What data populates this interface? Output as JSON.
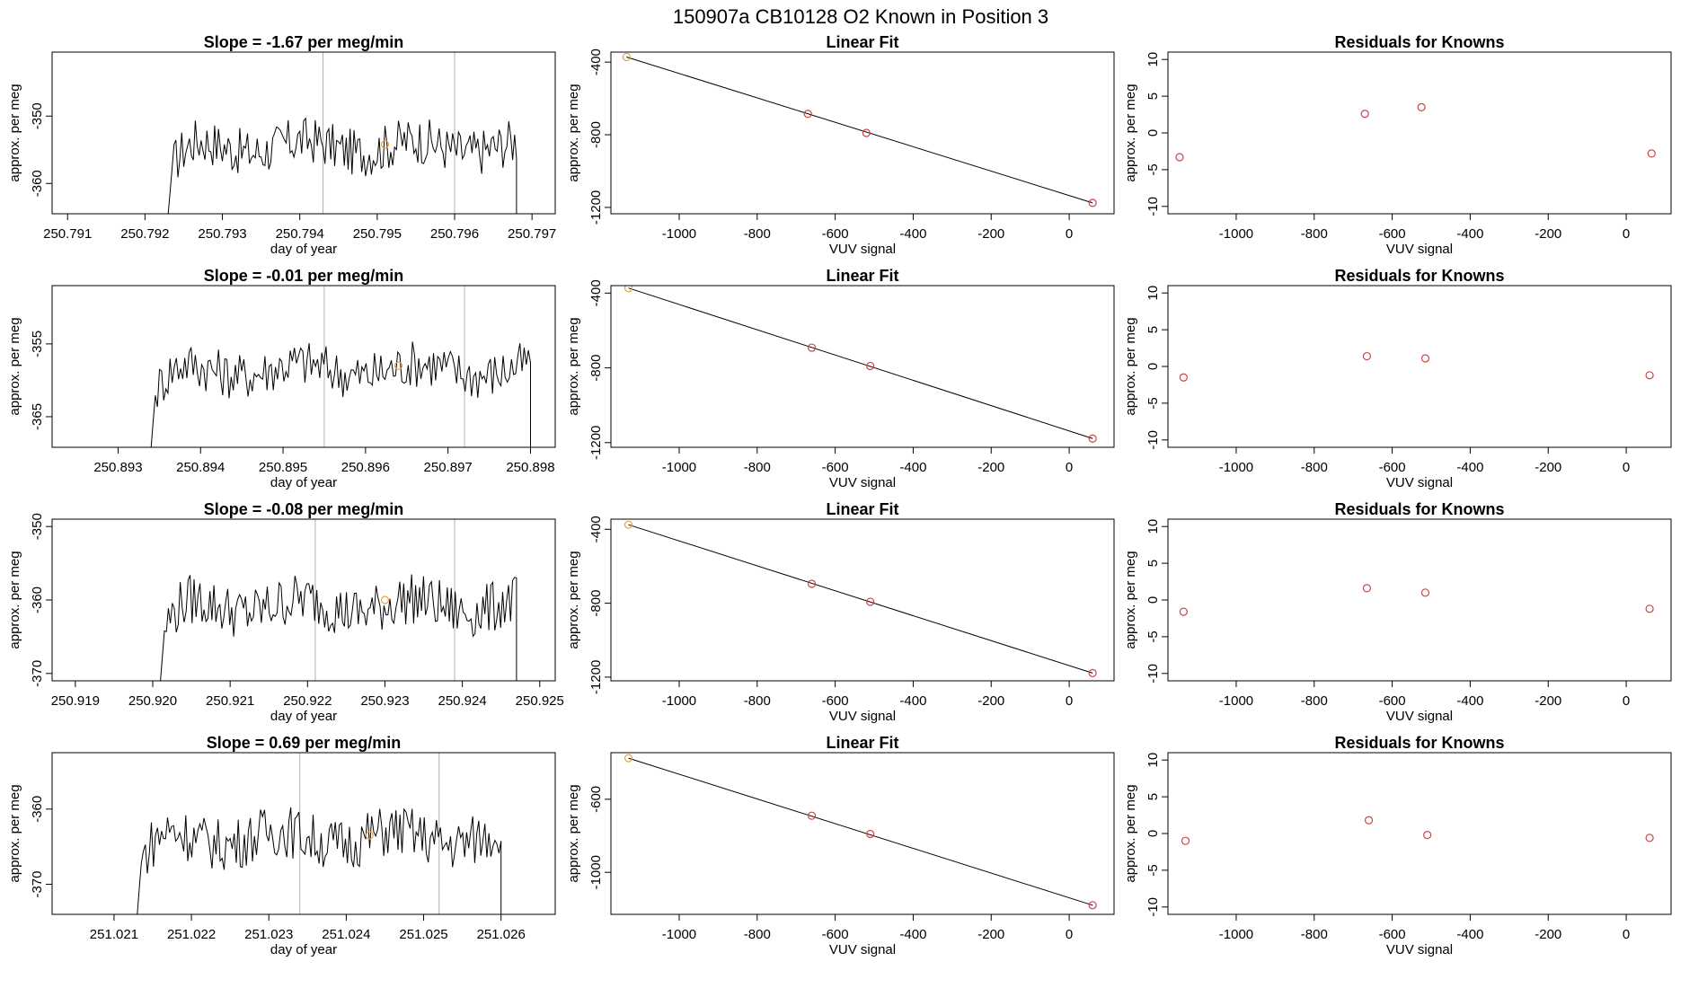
{
  "figure": {
    "title": "150907a      CB10128    O2 Known in Position  3"
  },
  "colors": {
    "line": "#000000",
    "known": "#e8a33d",
    "residual": "#cc4444",
    "axis": "#000000",
    "guide": "#b0b0b0"
  },
  "chart_data": [
    {
      "type": "line",
      "panel": "time-series",
      "row": 1,
      "title": "Slope =  -1.67  per meg/min",
      "xlabel": "day of year",
      "ylabel": "approx. per meg",
      "xlim": [
        250.7908,
        250.7973
      ],
      "ylim": [
        -364.5,
        -340.5
      ],
      "xticks": [
        250.791,
        250.792,
        250.793,
        250.794,
        250.795,
        250.796,
        250.797
      ],
      "xtick_labels": [
        "250.791",
        "250.792",
        "250.793",
        "250.794",
        "250.795",
        "250.796",
        "250.797"
      ],
      "yticks": [
        -350,
        -360
      ],
      "ytick_labels": [
        "-350",
        "-360"
      ],
      "vlines": [
        250.7943,
        250.796
      ],
      "series_start": 250.7923,
      "series_end": 250.7968,
      "series_mean": -354.5,
      "series_amp": 1.6,
      "start_value": -364.5,
      "end_value": -364.5,
      "known_point": {
        "x": 250.7951,
        "y": -354.2
      }
    },
    {
      "type": "line",
      "panel": "time-series",
      "row": 2,
      "title": "Slope =  -0.01  per meg/min",
      "xlabel": "day of year",
      "ylabel": "approx. per meg",
      "xlim": [
        250.8922,
        250.8983
      ],
      "ylim": [
        -369.2,
        -347.0
      ],
      "xticks": [
        250.893,
        250.894,
        250.895,
        250.896,
        250.897,
        250.898
      ],
      "xtick_labels": [
        "250.893",
        "250.894",
        "250.895",
        "250.896",
        "250.897",
        "250.898"
      ],
      "yticks": [
        -355,
        -365
      ],
      "ytick_labels": [
        "-355",
        "-365"
      ],
      "vlines": [
        250.8955,
        250.8972
      ],
      "series_start": 250.8934,
      "series_end": 250.898,
      "series_mean": -358.5,
      "series_amp": 1.5,
      "start_value": -369.2,
      "end_value": -369.2,
      "known_point": {
        "x": 250.8964,
        "y": -358.0
      }
    },
    {
      "type": "line",
      "panel": "time-series",
      "row": 3,
      "title": "Slope =  -0.08  per meg/min",
      "xlabel": "day of year",
      "ylabel": "approx. per meg",
      "xlim": [
        250.9187,
        250.9252
      ],
      "ylim": [
        -371.0,
        -349.0
      ],
      "xticks": [
        250.919,
        250.92,
        250.921,
        250.922,
        250.923,
        250.924,
        250.925
      ],
      "xtick_labels": [
        "250.919",
        "250.920",
        "250.921",
        "250.922",
        "250.923",
        "250.924",
        "250.925"
      ],
      "yticks": [
        -350,
        -360,
        -370
      ],
      "ytick_labels": [
        "-350",
        "-360",
        "-370"
      ],
      "vlines": [
        250.9221,
        250.9239
      ],
      "series_start": 250.9201,
      "series_end": 250.9247,
      "series_mean": -360.8,
      "series_amp": 1.6,
      "start_value": -371.0,
      "end_value": -371.0,
      "known_point": {
        "x": 250.923,
        "y": -360.0
      }
    },
    {
      "type": "line",
      "panel": "time-series",
      "row": 4,
      "title": "Slope =  0.69  per meg/min",
      "xlabel": "day of year",
      "ylabel": "approx. per meg",
      "xlim": [
        251.0202,
        251.0267
      ],
      "ylim": [
        -374.0,
        -352.5
      ],
      "xticks": [
        251.021,
        251.022,
        251.023,
        251.024,
        251.025,
        251.026
      ],
      "xtick_labels": [
        "251.021",
        "251.022",
        "251.023",
        "251.024",
        "251.025",
        "251.026"
      ],
      "yticks": [
        -360,
        -370
      ],
      "ytick_labels": [
        "-360",
        "-370"
      ],
      "vlines": [
        251.0234,
        251.0252
      ],
      "series_start": 251.0213,
      "series_end": 251.026,
      "series_mean": -363.8,
      "series_amp": 1.6,
      "start_value": -374.0,
      "end_value": -374.0,
      "known_point": {
        "x": 251.0243,
        "y": -363.5
      }
    },
    {
      "type": "scatter",
      "panel": "linear-fit",
      "row": 1,
      "title": "Linear Fit",
      "xlabel": "VUV signal",
      "ylabel": "approx. per meg",
      "xlim": [
        -1175,
        115
      ],
      "ylim": [
        -1235,
        -345
      ],
      "xticks": [
        -1000,
        -800,
        -600,
        -400,
        -200,
        0
      ],
      "xtick_labels": [
        "-1000",
        "-800",
        "-600",
        "-400",
        "-200",
        "0"
      ],
      "yticks": [
        -400,
        -800,
        -1200
      ],
      "ytick_labels": [
        "-400",
        "-800",
        "-1200"
      ],
      "points": [
        [
          -1135,
          -372
        ],
        [
          -670,
          -685
        ],
        [
          -520,
          -790
        ],
        [
          60,
          -1175
        ]
      ],
      "fit": [
        [
          -1135,
          -372
        ],
        [
          60,
          -1175
        ]
      ]
    },
    {
      "type": "scatter",
      "panel": "linear-fit",
      "row": 2,
      "title": "Linear Fit",
      "xlabel": "VUV signal",
      "ylabel": "approx. per meg",
      "xlim": [
        -1175,
        115
      ],
      "ylim": [
        -1225,
        -360
      ],
      "xticks": [
        -1000,
        -800,
        -600,
        -400,
        -200,
        0
      ],
      "xtick_labels": [
        "-1000",
        "-800",
        "-600",
        "-400",
        "-200",
        "0"
      ],
      "yticks": [
        -400,
        -800,
        -1200
      ],
      "ytick_labels": [
        "-400",
        "-800",
        "-1200"
      ],
      "points": [
        [
          -1130,
          -373
        ],
        [
          -660,
          -692
        ],
        [
          -510,
          -790
        ],
        [
          60,
          -1178
        ]
      ],
      "fit": [
        [
          -1130,
          -373
        ],
        [
          60,
          -1178
        ]
      ]
    },
    {
      "type": "scatter",
      "panel": "linear-fit",
      "row": 3,
      "title": "Linear Fit",
      "xlabel": "VUV signal",
      "ylabel": "approx. per meg",
      "xlim": [
        -1175,
        115
      ],
      "ylim": [
        -1220,
        -345
      ],
      "xticks": [
        -1000,
        -800,
        -600,
        -400,
        -200,
        0
      ],
      "xtick_labels": [
        "-1000",
        "-800",
        "-600",
        "-400",
        "-200",
        "0"
      ],
      "yticks": [
        -400,
        -800,
        -1200
      ],
      "ytick_labels": [
        "-400",
        "-800",
        "-1200"
      ],
      "points": [
        [
          -1130,
          -375
        ],
        [
          -660,
          -695
        ],
        [
          -510,
          -792
        ],
        [
          60,
          -1178
        ]
      ],
      "fit": [
        [
          -1130,
          -375
        ],
        [
          60,
          -1178
        ]
      ]
    },
    {
      "type": "scatter",
      "panel": "linear-fit",
      "row": 4,
      "title": "Linear Fit",
      "xlabel": "VUV signal",
      "ylabel": "approx. per meg",
      "xlim": [
        -1175,
        115
      ],
      "ylim": [
        -1230,
        -345
      ],
      "xticks": [
        -1000,
        -800,
        -600,
        -400,
        -200,
        0
      ],
      "xtick_labels": [
        "-1000",
        "-800",
        "-600",
        "-400",
        "-200",
        "0"
      ],
      "yticks": [
        -600,
        -1000
      ],
      "ytick_labels": [
        "-600",
        "-1000"
      ],
      "points": [
        [
          -1130,
          -375
        ],
        [
          -660,
          -690
        ],
        [
          -510,
          -790
        ],
        [
          60,
          -1180
        ]
      ],
      "fit": [
        [
          -1130,
          -375
        ],
        [
          60,
          -1180
        ]
      ]
    },
    {
      "type": "scatter",
      "panel": "residuals",
      "row": 1,
      "title": "Residuals for Knowns",
      "xlabel": "VUV signal",
      "ylabel": "approx. per meg",
      "xlim": [
        -1175,
        115
      ],
      "ylim": [
        -11,
        11
      ],
      "xticks": [
        -1000,
        -800,
        -600,
        -400,
        -200,
        0
      ],
      "xtick_labels": [
        "-1000",
        "-800",
        "-600",
        "-400",
        "-200",
        "0"
      ],
      "yticks": [
        10,
        5,
        0,
        -5,
        -10
      ],
      "ytick_labels": [
        "10",
        "5",
        "0",
        "-5",
        "-10"
      ],
      "points": [
        [
          -1145,
          -3.3
        ],
        [
          -670,
          2.6
        ],
        [
          -525,
          3.5
        ],
        [
          65,
          -2.8
        ]
      ]
    },
    {
      "type": "scatter",
      "panel": "residuals",
      "row": 2,
      "title": "Residuals for Knowns",
      "xlabel": "VUV signal",
      "ylabel": "approx. per meg",
      "xlim": [
        -1175,
        115
      ],
      "ylim": [
        -11,
        11
      ],
      "xticks": [
        -1000,
        -800,
        -600,
        -400,
        -200,
        0
      ],
      "xtick_labels": [
        "-1000",
        "-800",
        "-600",
        "-400",
        "-200",
        "0"
      ],
      "yticks": [
        10,
        5,
        0,
        -5,
        -10
      ],
      "ytick_labels": [
        "10",
        "5",
        "0",
        "-5",
        "-10"
      ],
      "points": [
        [
          -1135,
          -1.5
        ],
        [
          -665,
          1.4
        ],
        [
          -515,
          1.1
        ],
        [
          60,
          -1.2
        ]
      ]
    },
    {
      "type": "scatter",
      "panel": "residuals",
      "row": 3,
      "title": "Residuals for Knowns",
      "xlabel": "VUV signal",
      "ylabel": "approx. per meg",
      "xlim": [
        -1175,
        115
      ],
      "ylim": [
        -11,
        11
      ],
      "xticks": [
        -1000,
        -800,
        -600,
        -400,
        -200,
        0
      ],
      "xtick_labels": [
        "-1000",
        "-800",
        "-600",
        "-400",
        "-200",
        "0"
      ],
      "yticks": [
        10,
        5,
        0,
        -5,
        -10
      ],
      "ytick_labels": [
        "10",
        "5",
        "0",
        "-5",
        "-10"
      ],
      "points": [
        [
          -1135,
          -1.6
        ],
        [
          -665,
          1.6
        ],
        [
          -515,
          1.0
        ],
        [
          60,
          -1.2
        ]
      ]
    },
    {
      "type": "scatter",
      "panel": "residuals",
      "row": 4,
      "title": "Residuals for Knowns",
      "xlabel": "VUV signal",
      "ylabel": "approx. per meg",
      "xlim": [
        -1175,
        115
      ],
      "ylim": [
        -11,
        11
      ],
      "xticks": [
        -1000,
        -800,
        -600,
        -400,
        -200,
        0
      ],
      "xtick_labels": [
        "-1000",
        "-800",
        "-600",
        "-400",
        "-200",
        "0"
      ],
      "yticks": [
        10,
        5,
        0,
        -5,
        -10
      ],
      "ytick_labels": [
        "10",
        "5",
        "0",
        "-5",
        "-10"
      ],
      "points": [
        [
          -1130,
          -1.0
        ],
        [
          -660,
          1.8
        ],
        [
          -510,
          -0.2
        ],
        [
          60,
          -0.6
        ]
      ]
    }
  ]
}
